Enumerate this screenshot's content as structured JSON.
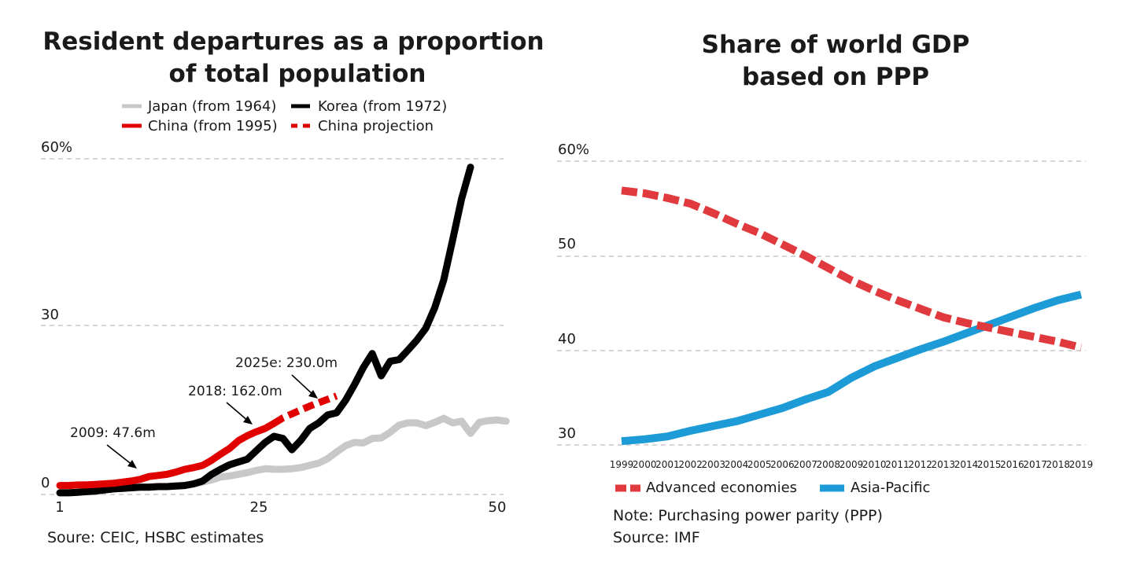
{
  "chart_data": [
    {
      "type": "line",
      "title": "Resident departures as a proportion of total population",
      "title_lines": [
        "Resident departures as a proportion",
        "of total population"
      ],
      "xlabel": "",
      "ylabel": "",
      "x_ticks": [
        "1",
        "25",
        "50"
      ],
      "y_ticks": [
        "0",
        "30",
        "60%"
      ],
      "xlim": [
        1,
        50
      ],
      "ylim": [
        0,
        60
      ],
      "grid": true,
      "legend_position": "top",
      "series": [
        {
          "name": "Japan (from 1964)",
          "color": "#c8c8c8",
          "style": "solid",
          "x": [
            1,
            2,
            3,
            4,
            5,
            6,
            7,
            8,
            9,
            10,
            11,
            12,
            13,
            14,
            15,
            16,
            17,
            18,
            19,
            20,
            21,
            22,
            23,
            24,
            25,
            26,
            27,
            28,
            29,
            30,
            31,
            32,
            33,
            34,
            35,
            36,
            37,
            38,
            39,
            40,
            41,
            42,
            43,
            44,
            45,
            46,
            47,
            48,
            49,
            50,
            51
          ],
          "y": [
            0.3,
            0.3,
            0.4,
            0.5,
            0.6,
            0.8,
            1.0,
            1.1,
            1.2,
            1.3,
            1.3,
            1.4,
            1.4,
            1.5,
            1.6,
            1.9,
            2.2,
            2.6,
            3.1,
            3.3,
            3.6,
            3.9,
            4.3,
            4.6,
            4.5,
            4.5,
            4.6,
            4.8,
            5.2,
            5.6,
            6.4,
            7.6,
            8.7,
            9.3,
            9.2,
            10.0,
            10.1,
            11.1,
            12.4,
            12.8,
            12.8,
            12.3,
            12.9,
            13.6,
            12.8,
            13.1,
            10.9,
            12.9,
            13.2,
            13.3,
            13.1
          ]
        },
        {
          "name": "Korea (from 1972)",
          "color": "#000000",
          "style": "solid",
          "x": [
            1,
            2,
            3,
            4,
            5,
            6,
            7,
            8,
            9,
            10,
            11,
            12,
            13,
            14,
            15,
            16,
            17,
            18,
            19,
            20,
            21,
            22,
            23,
            24,
            25,
            26,
            27,
            28,
            29,
            30,
            31,
            32,
            33,
            34,
            35,
            36,
            37,
            38,
            39,
            40,
            41,
            42,
            43,
            44,
            45,
            46,
            47
          ],
          "y": [
            0.3,
            0.3,
            0.4,
            0.5,
            0.6,
            0.8,
            1.0,
            1.1,
            1.2,
            1.3,
            1.3,
            1.4,
            1.4,
            1.5,
            1.6,
            1.9,
            2.4,
            3.6,
            4.5,
            5.3,
            5.8,
            6.3,
            7.8,
            9.3,
            10.4,
            10.0,
            8.0,
            9.7,
            11.8,
            12.8,
            14.2,
            14.6,
            16.8,
            19.6,
            22.7,
            25.2,
            21.2,
            23.8,
            24.1,
            25.8,
            27.6,
            29.7,
            33.4,
            38.3,
            45.5,
            52.8,
            58.5
          ]
        },
        {
          "name": "China (from 1995)",
          "color": "#e00000",
          "style": "solid",
          "x": [
            1,
            2,
            3,
            4,
            5,
            6,
            7,
            8,
            9,
            10,
            11,
            12,
            13,
            14,
            15,
            16,
            17,
            18,
            19,
            20,
            21,
            22,
            23,
            24,
            25
          ],
          "y": [
            1.6,
            1.6,
            1.7,
            1.7,
            1.8,
            1.9,
            2.0,
            2.2,
            2.4,
            2.7,
            3.2,
            3.4,
            3.6,
            4.0,
            4.5,
            4.8,
            5.2,
            6.1,
            7.2,
            8.2,
            9.6,
            10.5,
            11.2,
            11.8,
            12.7
          ]
        },
        {
          "name": "China projection",
          "color": "#e00000",
          "style": "dashed",
          "x": [
            25,
            26,
            27,
            28,
            29,
            30,
            31,
            32
          ],
          "y": [
            12.7,
            13.7,
            14.4,
            15.1,
            15.8,
            16.4,
            17.0,
            17.6
          ]
        }
      ],
      "annotations": [
        {
          "text": "2009: 47.6m",
          "x": 11,
          "y": 2.9
        },
        {
          "text": "2018: 162.0m",
          "x": 25,
          "y": 12.7
        },
        {
          "text": "2025e: 230.0m",
          "x": 32,
          "y": 17.6
        }
      ],
      "source": "Soure: CEIC, HSBC estimates"
    },
    {
      "type": "line",
      "title": "Share of world GDP based on PPP",
      "title_lines": [
        "Share of world GDP",
        "based on PPP"
      ],
      "xlabel": "",
      "ylabel": "",
      "categories": [
        "1999",
        "2000",
        "2001",
        "2002",
        "2003",
        "2004",
        "2005",
        "2006",
        "2007",
        "2008",
        "2009",
        "2010",
        "2011",
        "2012",
        "2013",
        "2014",
        "2015",
        "2016",
        "2017",
        "2018",
        "2019"
      ],
      "y_ticks": [
        "30",
        "40",
        "50",
        "60%"
      ],
      "ylim": [
        30,
        60
      ],
      "grid": true,
      "legend_position": "bottom",
      "series": [
        {
          "name": "Advanced economies",
          "color": "#e03a3e",
          "style": "dashed",
          "values": [
            56.9,
            56.6,
            56.1,
            55.5,
            54.5,
            53.4,
            52.4,
            51.2,
            50.0,
            48.7,
            47.4,
            46.3,
            45.3,
            44.4,
            43.5,
            42.9,
            42.4,
            41.9,
            41.4,
            40.9,
            40.3
          ]
        },
        {
          "name": "Asia-Pacific",
          "color": "#1d9bd7",
          "style": "solid",
          "values": [
            30.4,
            30.6,
            30.9,
            31.5,
            32.0,
            32.5,
            33.2,
            33.9,
            34.8,
            35.6,
            37.1,
            38.3,
            39.2,
            40.1,
            40.9,
            41.8,
            42.7,
            43.6,
            44.5,
            45.3,
            45.9
          ]
        }
      ],
      "notes": [
        "Note: Purchasing power parity (PPP)",
        "Source: IMF"
      ]
    }
  ]
}
